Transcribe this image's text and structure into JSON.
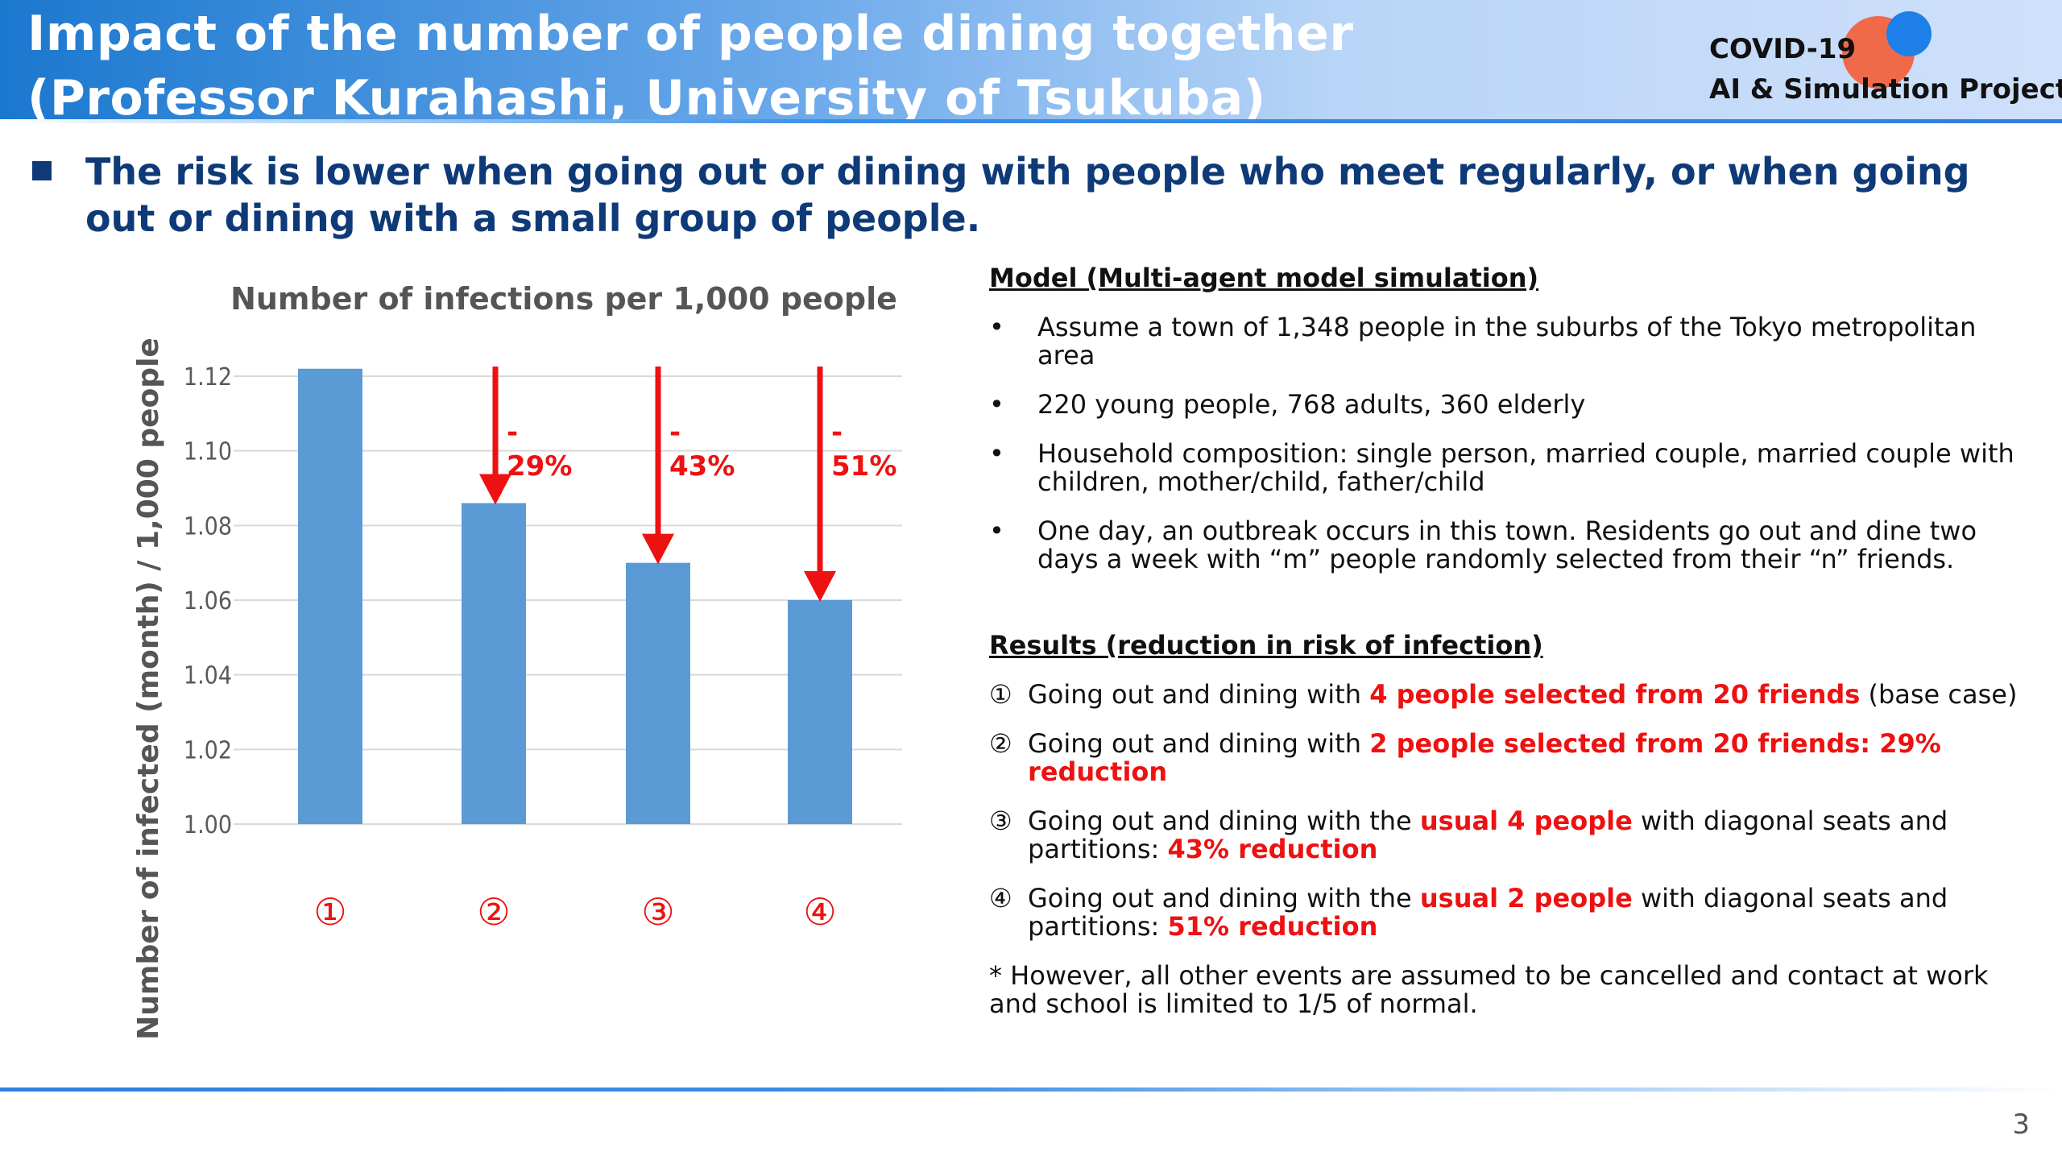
{
  "header": {
    "title_line1": "Impact of the number of people dining together",
    "title_line2": "(Professor Kurahashi, University of Tsukuba)",
    "logo_line1": "COVID-19",
    "logo_line2": "AI & Simulation Project"
  },
  "subtitle": "The risk is lower when going out or dining with people who meet regularly, or when going out or dining with a small group of people.",
  "chart_data": {
    "type": "bar",
    "title": "Number of infections per 1,000 people",
    "ylabel": "Number of infected (month) / 1,000 people",
    "categories": [
      "①",
      "②",
      "③",
      "④"
    ],
    "values": [
      1.122,
      1.086,
      1.07,
      1.06
    ],
    "ylim": [
      1.0,
      1.12
    ],
    "yticks": [
      "1.00",
      "1.02",
      "1.04",
      "1.06",
      "1.08",
      "1.10",
      "1.12"
    ],
    "reduction_labels": [
      "",
      "-\n29%",
      "-\n43%",
      "-\n51%"
    ],
    "grid": true,
    "bar_color": "#5b9bd5",
    "arrow_color": "#ee1111"
  },
  "model": {
    "title": "Model (Multi-agent model simulation)",
    "bullet": "•",
    "items": [
      "Assume a town of 1,348 people in the suburbs of the Tokyo metropolitan area",
      "220 young people, 768 adults, 360 elderly",
      "Household composition: single person, married couple, married couple with children, mother/child, father/child",
      "One day, an outbreak occurs in this town. Residents go out and dine two days a week with “m” people randomly selected from their “n” friends."
    ]
  },
  "results": {
    "title": "Results (reduction in risk of infection)",
    "items": [
      {
        "num": "①",
        "pre": "Going out and dining with ",
        "red": "4 people selected from 20 friends",
        "post": " (base case)",
        "red2": ""
      },
      {
        "num": "②",
        "pre": "Going out and dining with ",
        "red": "2 people selected from 20 friends: 29% reduction",
        "post": "",
        "red2": ""
      },
      {
        "num": "③",
        "pre": "Going out and dining with the ",
        "red": "usual 4 people",
        "post": " with diagonal seats and partitions: ",
        "red2": "43% reduction"
      },
      {
        "num": "④",
        "pre": "Going out and dining with the ",
        "red": "usual 2 people",
        "post": " with diagonal seats and partitions: ",
        "red2": "51% reduction"
      }
    ],
    "note": "* However, all other events are assumed to be cancelled and contact at work and school is limited to 1/5 of normal."
  },
  "page_number": "3"
}
